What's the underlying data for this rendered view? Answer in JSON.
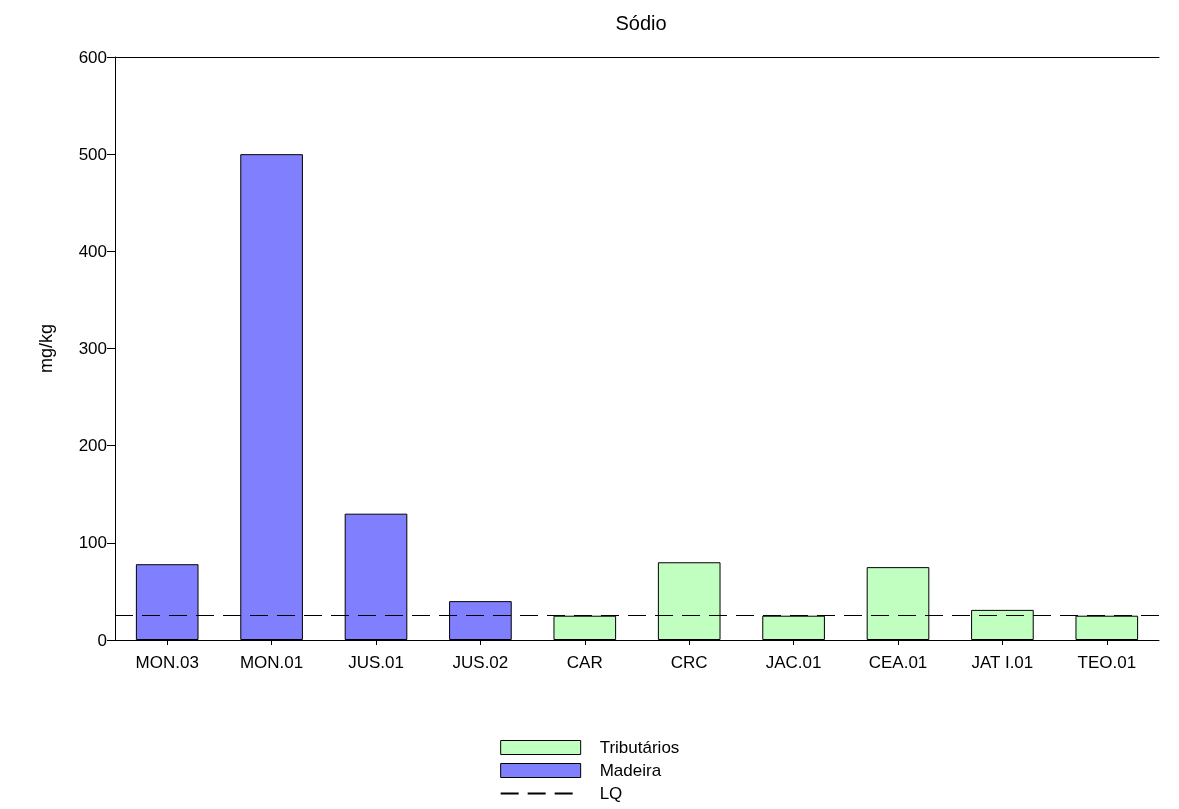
{
  "chart_data": {
    "type": "bar",
    "title": "Sódio",
    "ylabel": "mg/kg",
    "categories": [
      "MON.03",
      "MON.01",
      "JUS.01",
      "JUS.02",
      "CAR",
      "CRC",
      "JAC.01",
      "CEA.01",
      "JAT I.01",
      "TEO.01"
    ],
    "series": [
      {
        "name": "Tributários",
        "color": "#c1ffc1",
        "values": [
          null,
          null,
          null,
          null,
          25,
          80,
          25,
          75,
          31,
          25
        ]
      },
      {
        "name": "Madeira",
        "color": "#8080ff",
        "values": [
          78,
          500,
          130,
          40,
          null,
          null,
          null,
          null,
          null,
          null
        ]
      }
    ],
    "ylim": [
      0,
      600
    ],
    "yticks": [
      0,
      100,
      200,
      300,
      400,
      500,
      600
    ],
    "ref_lines": [
      {
        "axis": "y",
        "value": 25,
        "label": "LQ",
        "color": "#000000",
        "line_style": "dashed"
      }
    ],
    "grid": false,
    "legend": "bottom"
  }
}
